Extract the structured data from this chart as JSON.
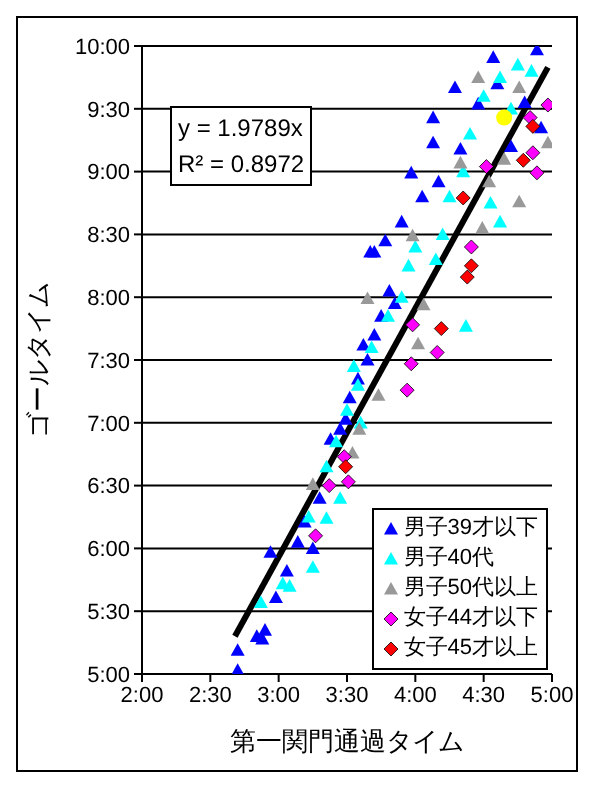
{
  "chart_data": {
    "type": "scatter",
    "xlabel": "第一関門通過タイム",
    "ylabel": "ゴールタイム",
    "xlim": [
      2,
      5
    ],
    "ylim": [
      5,
      10
    ],
    "xticks": [
      {
        "value": 2,
        "label": "2:00"
      },
      {
        "value": 2.5,
        "label": "2:30"
      },
      {
        "value": 3,
        "label": "3:00"
      },
      {
        "value": 3.5,
        "label": "3:30"
      },
      {
        "value": 4,
        "label": "4:00"
      },
      {
        "value": 4.5,
        "label": "4:30"
      },
      {
        "value": 5,
        "label": "5:00"
      }
    ],
    "yticks": [
      {
        "value": 5,
        "label": "5:00"
      },
      {
        "value": 5.5,
        "label": "5:30"
      },
      {
        "value": 6,
        "label": "6:00"
      },
      {
        "value": 6.5,
        "label": "6:30"
      },
      {
        "value": 7,
        "label": "7:00"
      },
      {
        "value": 7.5,
        "label": "7:30"
      },
      {
        "value": 8,
        "label": "8:00"
      },
      {
        "value": 8.5,
        "label": "8:30"
      },
      {
        "value": 9,
        "label": "9:00"
      },
      {
        "value": 9.5,
        "label": "9:30"
      },
      {
        "value": 10,
        "label": "10:00"
      }
    ],
    "grid": "y",
    "legend": "bottom right",
    "annotations": [
      "y = 1.9789x",
      "R² = 0.8972"
    ],
    "series": [
      {
        "name": "男子39才以下",
        "color": "#0000ff",
        "marker": "triangle",
        "x": [
          2.7,
          2.7,
          2.84,
          2.9,
          2.88,
          2.98,
          2.94,
          3.06,
          3.14,
          3.19,
          3.25,
          3.3,
          3.38,
          3.45,
          3.49,
          3.52,
          3.58,
          3.65,
          3.62,
          3.7,
          3.75,
          3.81,
          3.85,
          3.67,
          3.7,
          3.78,
          3.9,
          3.97,
          4.05,
          4.13,
          4.17,
          4.13,
          4.29,
          4.33,
          4.46,
          4.57,
          4.6,
          4.89,
          4.8,
          4.92,
          4.7
        ],
        "values": [
          5.03,
          5.19,
          5.3,
          5.35,
          5.28,
          5.61,
          5.97,
          5.82,
          6.05,
          6.21,
          6.0,
          6.4,
          6.87,
          6.95,
          7.03,
          7.2,
          7.35,
          7.5,
          7.62,
          7.7,
          7.85,
          8.05,
          7.95,
          8.36,
          8.36,
          8.45,
          8.6,
          8.99,
          8.8,
          9.23,
          8.92,
          9.43,
          9.67,
          9.18,
          9.54,
          9.91,
          9.7,
          9.97,
          9.55,
          9.35,
          9.2
        ]
      },
      {
        "name": "男子40代",
        "color": "#00ffff",
        "marker": "triangle",
        "x": [
          2.87,
          3.03,
          3.08,
          3.22,
          3.35,
          3.35,
          3.42,
          3.5,
          3.58,
          3.55,
          3.68,
          3.8,
          3.9,
          3.95,
          4.37,
          4.2,
          4.25,
          4.35,
          4.4,
          4.5,
          4.62,
          4.7,
          4.75,
          4.85,
          4.55,
          4.62,
          4.15,
          4.0,
          3.45,
          3.6,
          3.25
        ],
        "values": [
          5.57,
          5.72,
          5.7,
          6.25,
          6.65,
          6.24,
          6.85,
          7.1,
          7.3,
          7.45,
          7.6,
          7.85,
          8.0,
          8.25,
          7.77,
          8.5,
          8.8,
          9.0,
          9.3,
          9.6,
          9.75,
          9.5,
          9.85,
          9.8,
          8.75,
          8.6,
          8.3,
          8.4,
          6.4,
          7.0,
          5.85
        ]
      },
      {
        "name": "男子50代以上",
        "color": "#999999",
        "marker": "triangle",
        "x": [
          3.25,
          3.54,
          3.59,
          3.73,
          3.65,
          4.02,
          4.06,
          3.98,
          4.33,
          4.46,
          4.49,
          4.54,
          4.76,
          4.76,
          4.97,
          4.65
        ],
        "values": [
          6.51,
          6.76,
          6.95,
          7.22,
          7.99,
          7.63,
          7.94,
          8.49,
          9.07,
          9.75,
          8.55,
          8.92,
          9.67,
          8.76,
          9.23,
          9.1
        ]
      },
      {
        "name": "女子44才以下",
        "color": "#ff00ff",
        "marker": "diamond",
        "x": [
          3.27,
          3.37,
          3.48,
          3.51,
          3.94,
          3.97,
          3.98,
          4.16,
          4.41,
          4.52,
          4.84,
          4.86,
          4.89,
          4.97
        ],
        "values": [
          6.1,
          6.5,
          6.73,
          6.53,
          7.26,
          7.47,
          7.78,
          7.56,
          8.4,
          9.04,
          9.43,
          9.15,
          8.99,
          9.53
        ]
      },
      {
        "name": "女子45才以上",
        "color": "#ff0000",
        "marker": "diamond",
        "x": [
          3.49,
          4.19,
          4.38,
          4.41,
          4.35,
          4.79,
          4.86
        ],
        "values": [
          6.65,
          7.75,
          8.16,
          8.25,
          8.79,
          9.09,
          9.36
        ]
      },
      {
        "color": "#ffff00",
        "marker": "circle",
        "x": [
          4.65
        ],
        "values": [
          9.43
        ]
      },
      {
        "type": "line",
        "color": "#000000",
        "marker": "none",
        "x": [
          2.68,
          4.97
        ],
        "values": [
          5.3,
          9.83
        ]
      }
    ]
  }
}
